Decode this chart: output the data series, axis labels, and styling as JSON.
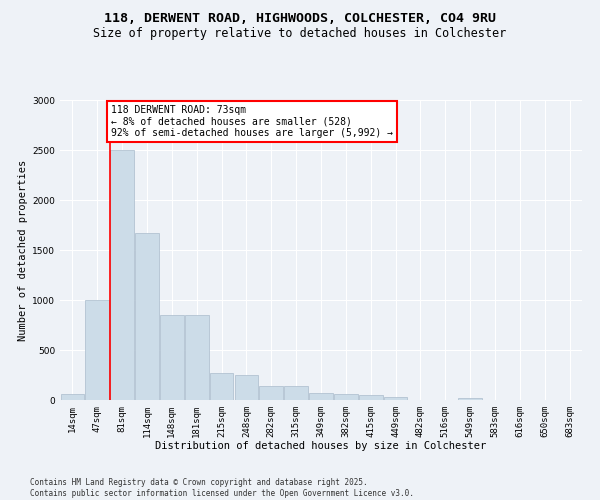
{
  "title_line1": "118, DERWENT ROAD, HIGHWOODS, COLCHESTER, CO4 9RU",
  "title_line2": "Size of property relative to detached houses in Colchester",
  "xlabel": "Distribution of detached houses by size in Colchester",
  "ylabel": "Number of detached properties",
  "footnote": "Contains HM Land Registry data © Crown copyright and database right 2025.\nContains public sector information licensed under the Open Government Licence v3.0.",
  "bin_labels": [
    "14sqm",
    "47sqm",
    "81sqm",
    "114sqm",
    "148sqm",
    "181sqm",
    "215sqm",
    "248sqm",
    "282sqm",
    "315sqm",
    "349sqm",
    "382sqm",
    "415sqm",
    "449sqm",
    "482sqm",
    "516sqm",
    "549sqm",
    "583sqm",
    "616sqm",
    "650sqm",
    "683sqm"
  ],
  "bar_values": [
    65,
    1000,
    2500,
    1670,
    850,
    850,
    270,
    255,
    140,
    140,
    70,
    60,
    50,
    35,
    0,
    0,
    25,
    0,
    0,
    0,
    0
  ],
  "bar_color": "#ccdce8",
  "bar_edge_color": "#aabccc",
  "property_line_x": 1.5,
  "annotation_text": "118 DERWENT ROAD: 73sqm\n← 8% of detached houses are smaller (528)\n92% of semi-detached houses are larger (5,992) →",
  "annotation_box_color": "white",
  "annotation_box_edge_color": "red",
  "property_line_color": "red",
  "ylim": [
    0,
    3000
  ],
  "yticks": [
    0,
    500,
    1000,
    1500,
    2000,
    2500,
    3000
  ],
  "background_color": "#eef2f7",
  "grid_color": "white",
  "title_fontsize": 9.5,
  "subtitle_fontsize": 8.5,
  "axis_label_fontsize": 7.5,
  "tick_fontsize": 6.5,
  "annotation_fontsize": 7,
  "footnote_fontsize": 5.5
}
